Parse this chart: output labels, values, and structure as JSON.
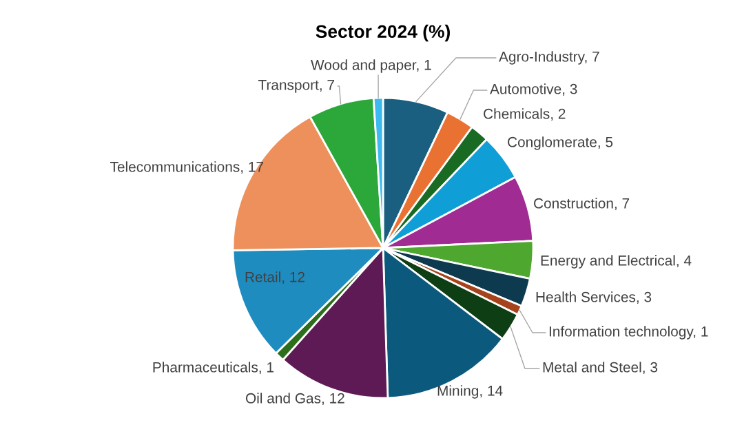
{
  "chart_data": {
    "type": "pie",
    "title": "Sector 2024 (%)",
    "categories": [
      "Agro-Industry, 7",
      "Automotive, 3",
      "Chemicals, 2",
      "Conglomerate, 5",
      "Construction, 7",
      "Energy and Electrical, 4",
      "Health Services, 3",
      "Information technology, 1",
      "Metal and Steel, 3",
      "Mining, 14",
      "Oil and Gas, 12",
      "Pharmaceuticals, 1",
      "Retail, 12",
      "Telecommunications, 17",
      "Transport, 7",
      "Wood and paper, 1"
    ],
    "values": [
      7,
      3,
      2,
      5,
      7,
      4,
      3,
      1,
      3,
      14,
      12,
      1,
      12,
      17,
      7,
      1
    ],
    "colors": [
      "#1a5e80",
      "#e97132",
      "#196b24",
      "#0f9ed5",
      "#a02b93",
      "#4ea72e",
      "#0e3a4f",
      "#a5441c",
      "#0d3e14",
      "#0b5a7e",
      "#5e1a54",
      "#2d6e1c",
      "#1f8cc0",
      "#ed905c",
      "#2ba839",
      "#3bb9f0"
    ]
  }
}
